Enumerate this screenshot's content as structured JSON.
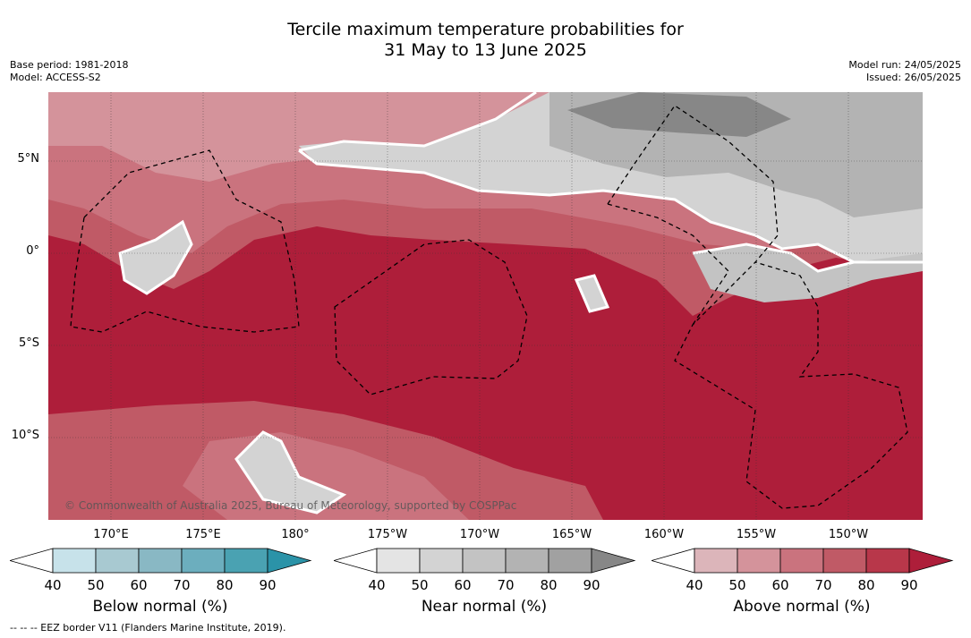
{
  "title_line1": "Tercile maximum temperature probabilities for",
  "title_line2": "31 May to 13 June 2025",
  "meta_left": [
    "Base period: 1981-2018",
    "Model: ACCESS-S2"
  ],
  "meta_right": [
    "Model run: 24/05/2025",
    "Issued: 26/05/2025"
  ],
  "lat_labels": [
    "5°N",
    "0°",
    "5°S",
    "10°S"
  ],
  "lon_labels": [
    "170°E",
    "175°E",
    "180°",
    "175°W",
    "170°W",
    "165°W",
    "160°W",
    "155°W",
    "150°W"
  ],
  "copyright": "© Commonwealth of Australia 2025, Bureau of Meteorology, supported by COSPPac",
  "colorbars": [
    {
      "label": "Below normal (%)",
      "ticks": [
        "40",
        "50",
        "60",
        "70",
        "80",
        "90"
      ],
      "colors": [
        "#c7e2ea",
        "#a8c9d1",
        "#89b8c4",
        "#6caebe",
        "#4aa2b2",
        "#2b93a8"
      ]
    },
    {
      "label": "Near normal (%)",
      "ticks": [
        "40",
        "50",
        "60",
        "70",
        "80",
        "90"
      ],
      "colors": [
        "#e4e4e4",
        "#d3d3d3",
        "#c3c3c3",
        "#b3b3b3",
        "#a1a1a1",
        "#878787"
      ]
    },
    {
      "label": "Above normal (%)",
      "ticks": [
        "40",
        "50",
        "60",
        "70",
        "80",
        "90"
      ],
      "colors": [
        "#dcb5ba",
        "#d4939b",
        "#ca737e",
        "#c05a66",
        "#b8374a",
        "#ae1e3a"
      ]
    }
  ],
  "footer": "--  --  -- EEZ border V11 (Flanders Marine Institute, 2019).",
  "colors": {
    "above_90": "#ae1e3a",
    "above_80": "#b8374a",
    "above_70": "#c05a66",
    "above_60": "#ca737e",
    "above_50": "#d4939b",
    "near_50": "#d3d3d3",
    "near_70": "#b3b3b3",
    "near_80": "#a1a1a1",
    "near_90": "#878787"
  }
}
